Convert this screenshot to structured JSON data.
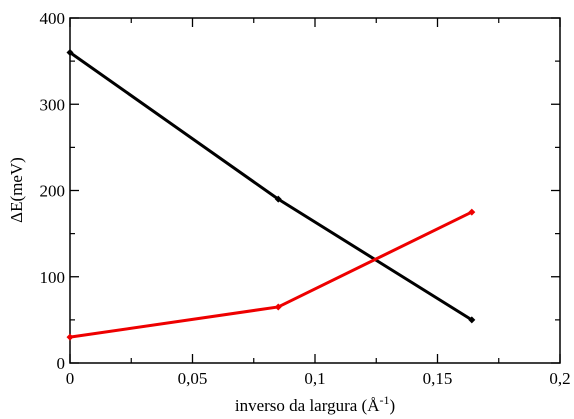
{
  "chart_data": {
    "type": "line",
    "xlabel": "inverso da largura (Å",
    "xlabel_sup": "-1",
    "xlabel_suffix": ")",
    "ylabel": "ΔE(meV)",
    "xlim": [
      0,
      0.2
    ],
    "ylim": [
      0,
      400
    ],
    "x_ticks": [
      0,
      0.05,
      0.1,
      0.15,
      0.2
    ],
    "x_tick_labels": [
      "0",
      "0,05",
      "0,1",
      "0,15",
      "0,2"
    ],
    "y_ticks": [
      0,
      100,
      200,
      300,
      400
    ],
    "y_tick_labels": [
      "0",
      "100",
      "200",
      "300",
      "400"
    ],
    "grid": false,
    "series": [
      {
        "color": "#000000",
        "x": [
          0,
          0.085,
          0.164
        ],
        "y": [
          360,
          190,
          50
        ]
      },
      {
        "color": "#ee0000",
        "x": [
          0,
          0.085,
          0.164
        ],
        "y": [
          30,
          65,
          175
        ]
      }
    ]
  }
}
